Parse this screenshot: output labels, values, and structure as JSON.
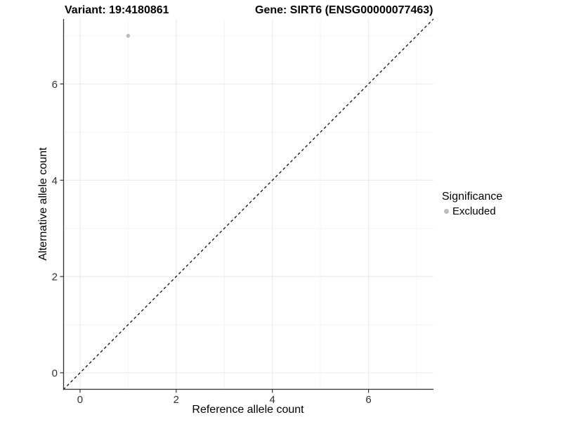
{
  "chart_data": {
    "type": "scatter",
    "title_left": "Variant: 19:4180861",
    "title_right": "Gene: SIRT6 (ENSG00000077463)",
    "xlabel": "Reference allele count",
    "ylabel": "Alternative allele count",
    "xlim": [
      -0.35,
      7.35
    ],
    "ylim": [
      -0.35,
      7.35
    ],
    "x_major_breaks": [
      0,
      2,
      4,
      6
    ],
    "x_minor_breaks": [
      1,
      3,
      5,
      7
    ],
    "y_major_breaks": [
      0,
      2,
      4,
      6
    ],
    "y_minor_breaks": [
      1,
      3,
      5,
      7
    ],
    "x_tick_labels": [
      "0",
      "2",
      "4",
      "6"
    ],
    "y_tick_labels": [
      "0",
      "2",
      "4",
      "6"
    ],
    "grid": true,
    "legend_position": "right",
    "points": [
      {
        "x": 1,
        "y": 7,
        "series": "Excluded"
      }
    ],
    "reference_line": {
      "kind": "identity",
      "style": "dashed",
      "color": "#000000"
    },
    "legend": {
      "title": "Significance",
      "entries": [
        {
          "label": "Excluded",
          "color": "#bdbdbd"
        }
      ]
    },
    "colors": {
      "background": "#ffffff",
      "grid_major": "#e8e8e8",
      "grid_minor": "#f4f4f4",
      "axis_line": "#333333",
      "tick_text": "#333333",
      "point": "#bdbdbd"
    }
  }
}
